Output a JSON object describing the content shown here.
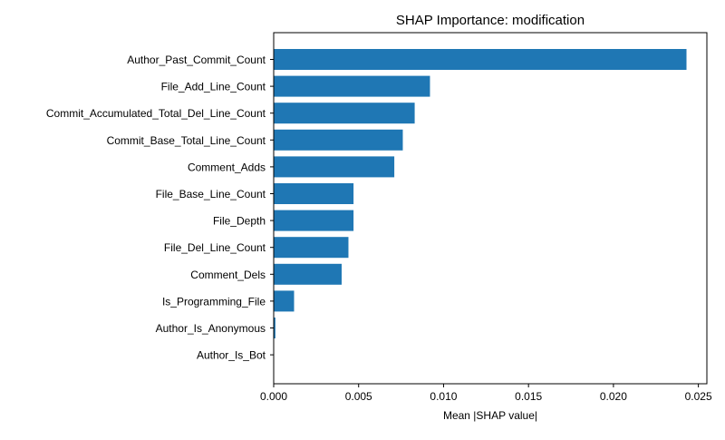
{
  "chart_data": {
    "type": "bar",
    "orientation": "horizontal",
    "title": "SHAP Importance: modification",
    "xlabel": "Mean |SHAP value|",
    "ylabel": "",
    "xlim": [
      0,
      0.0255
    ],
    "xticks": [
      0.0,
      0.005,
      0.01,
      0.015,
      0.02,
      0.025
    ],
    "xtick_labels": [
      "0.000",
      "0.005",
      "0.010",
      "0.015",
      "0.020",
      "0.025"
    ],
    "grid": false,
    "bar_color": "#1f77b4",
    "categories": [
      "Author_Past_Commit_Count",
      "File_Add_Line_Count",
      "Commit_Accumulated_Total_Del_Line_Count",
      "Commit_Base_Total_Line_Count",
      "Comment_Adds",
      "File_Base_Line_Count",
      "File_Depth",
      "File_Del_Line_Count",
      "Comment_Dels",
      "Is_Programming_File",
      "Author_Is_Anonymous",
      "Author_Is_Bot"
    ],
    "values": [
      0.0243,
      0.0092,
      0.0083,
      0.0076,
      0.0071,
      0.0047,
      0.0047,
      0.0044,
      0.004,
      0.0012,
      0.0001,
      0.0
    ]
  }
}
